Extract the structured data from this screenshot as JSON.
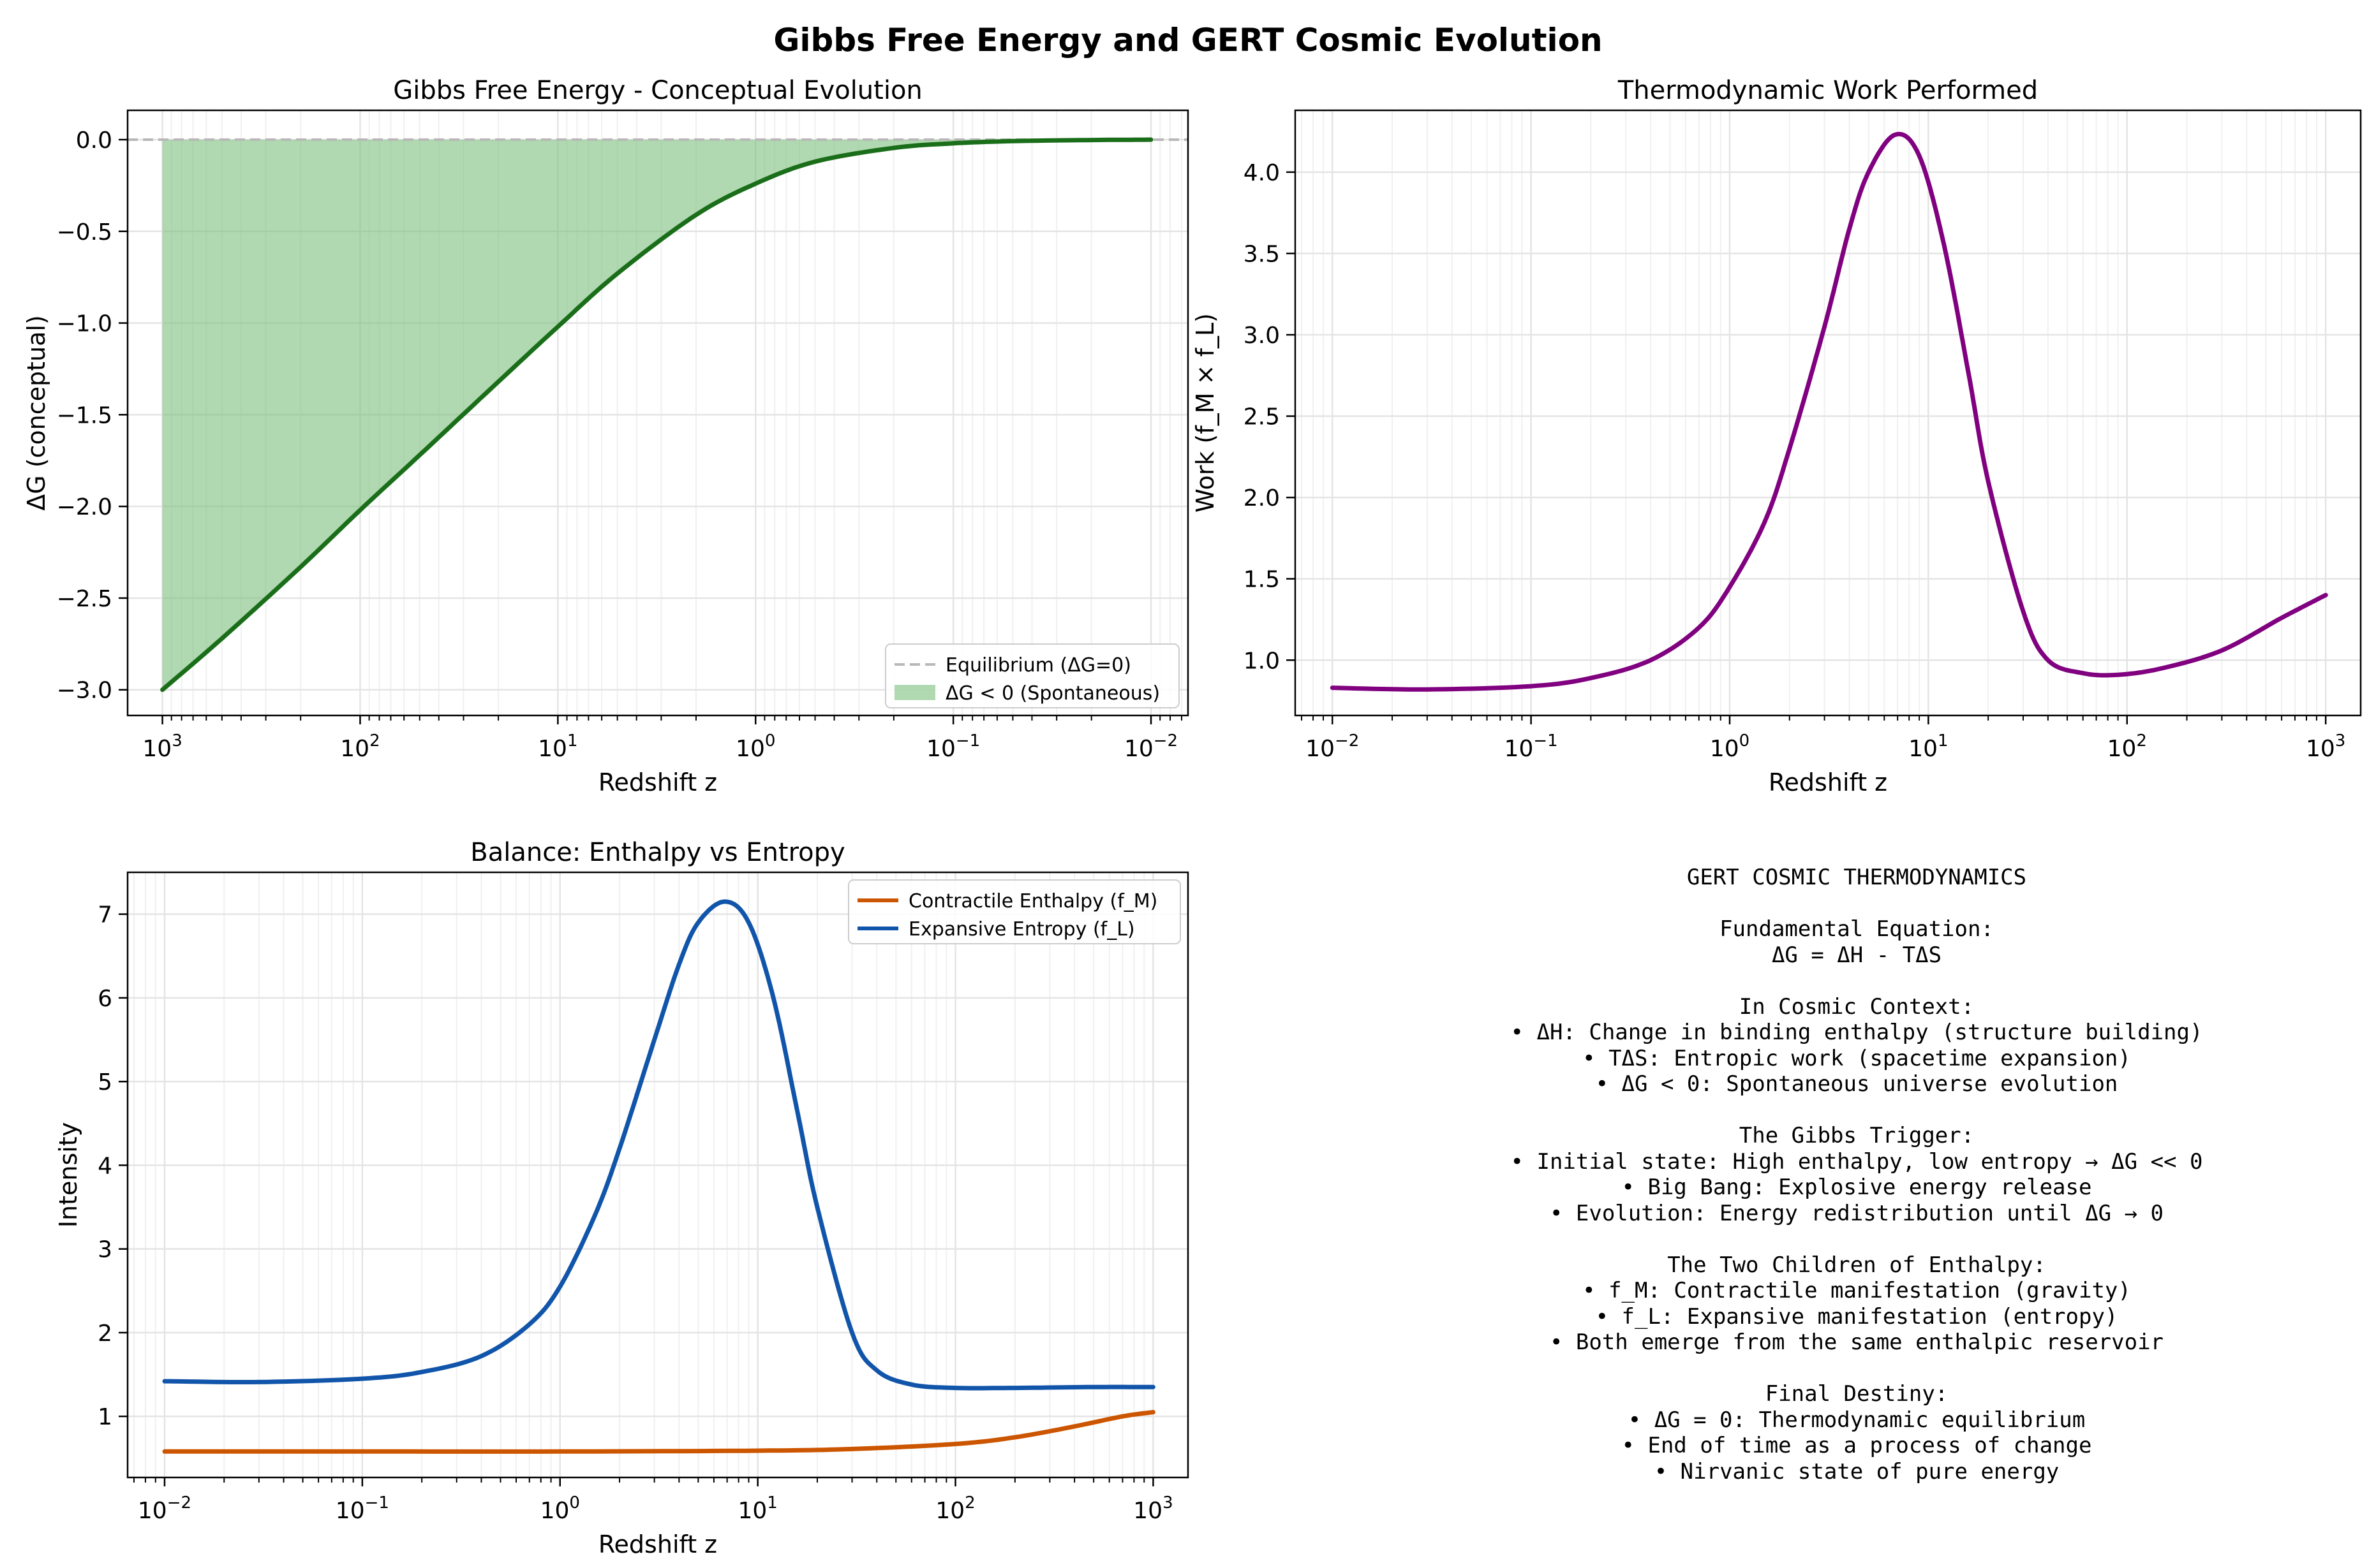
{
  "suptitle": "Gibbs Free Energy and GERT Cosmic Evolution",
  "colors": {
    "gibbs_line": "#1a6e1a",
    "gibbs_fill": "#7dc07d",
    "equilibrium": "#b8b8b8",
    "work_line": "#800080",
    "enthalpy": "#cc5500",
    "entropy": "#1155aa",
    "grid": "#e4e4e4",
    "axes": "#000000"
  },
  "chart_data": [
    {
      "id": "gibbs",
      "type": "line",
      "title": "Gibbs Free Energy - Conceptual Evolution",
      "xlabel": "Redshift z",
      "ylabel": "ΔG (conceptual)",
      "xscale": "log",
      "x_inverted": true,
      "xlim": [
        1500,
        0.0065
      ],
      "ylim": [
        -3.14,
        0.16
      ],
      "xticks": [
        1000,
        100,
        10,
        1,
        0.1,
        0.01
      ],
      "xtick_labels": [
        [
          "10",
          "3"
        ],
        [
          "10",
          "2"
        ],
        [
          "10",
          "1"
        ],
        [
          "10",
          "0"
        ],
        [
          "10",
          "−1"
        ],
        [
          "10",
          "−2"
        ]
      ],
      "yticks": [
        0.0,
        -0.5,
        -1.0,
        -1.5,
        -2.0,
        -2.5,
        -3.0
      ],
      "ytick_labels": [
        "0.0",
        "−0.5",
        "−1.0",
        "−1.5",
        "−2.0",
        "−2.5",
        "−3.0"
      ],
      "grid": true,
      "legend": "lower-right",
      "legend_entries": [
        "Equilibrium (ΔG=0)",
        "ΔG < 0 (Spontaneous)"
      ],
      "series": [
        {
          "label": "ΔG",
          "x": [
            1000,
            500,
            200,
            100,
            50,
            20,
            10,
            5,
            2,
            1,
            0.5,
            0.2,
            0.1,
            0.05,
            0.02,
            0.01
          ],
          "y": [
            -3.0,
            -2.72,
            -2.33,
            -2.02,
            -1.72,
            -1.32,
            -1.02,
            -0.73,
            -0.41,
            -0.24,
            -0.12,
            -0.045,
            -0.02,
            -0.008,
            -0.002,
            0.0
          ]
        }
      ],
      "reference_line": {
        "label": "Equilibrium (ΔG=0)",
        "y": 0.0
      }
    },
    {
      "id": "work",
      "type": "line",
      "title": "Thermodynamic Work Performed",
      "xlabel": "Redshift z",
      "ylabel": "Work (f_M × f_L)",
      "xscale": "log",
      "x_inverted": false,
      "xlim": [
        0.0065,
        1500
      ],
      "ylim": [
        0.66,
        4.38
      ],
      "xticks": [
        0.01,
        0.1,
        1,
        10,
        100,
        1000
      ],
      "xtick_labels": [
        [
          "10",
          "−2"
        ],
        [
          "10",
          "−1"
        ],
        [
          "10",
          "0"
        ],
        [
          "10",
          "1"
        ],
        [
          "10",
          "2"
        ],
        [
          "10",
          "3"
        ]
      ],
      "yticks": [
        1.0,
        1.5,
        2.0,
        2.5,
        3.0,
        3.5,
        4.0
      ],
      "ytick_labels": [
        "1.0",
        "1.5",
        "2.0",
        "2.5",
        "3.0",
        "3.5",
        "4.0"
      ],
      "grid": true,
      "series": [
        {
          "label": "Work",
          "x": [
            0.01,
            0.03,
            0.1,
            0.2,
            0.4,
            0.7,
            1,
            1.5,
            2,
            3,
            4,
            5,
            6.8,
            9,
            12,
            16,
            20,
            30,
            40,
            60,
            90,
            150,
            300,
            600,
            1000
          ],
          "y": [
            0.83,
            0.82,
            0.84,
            0.89,
            1.0,
            1.2,
            1.45,
            1.85,
            2.3,
            3.05,
            3.65,
            4.0,
            4.23,
            4.1,
            3.55,
            2.75,
            2.1,
            1.3,
            1.0,
            0.92,
            0.91,
            0.95,
            1.06,
            1.26,
            1.4
          ]
        }
      ]
    },
    {
      "id": "balance",
      "type": "line",
      "title": "Balance: Enthalpy vs Entropy",
      "xlabel": "Redshift z",
      "ylabel": "Intensity",
      "xscale": "log",
      "x_inverted": false,
      "xlim": [
        0.0065,
        1500
      ],
      "ylim": [
        0.27,
        7.5
      ],
      "xticks": [
        0.01,
        0.1,
        1,
        10,
        100,
        1000
      ],
      "xtick_labels": [
        [
          "10",
          "−2"
        ],
        [
          "10",
          "−1"
        ],
        [
          "10",
          "0"
        ],
        [
          "10",
          "1"
        ],
        [
          "10",
          "2"
        ],
        [
          "10",
          "3"
        ]
      ],
      "yticks": [
        1,
        2,
        3,
        4,
        5,
        6,
        7
      ],
      "ytick_labels": [
        "1",
        "2",
        "3",
        "4",
        "5",
        "6",
        "7"
      ],
      "grid": true,
      "legend": "upper-right",
      "legend_entries": [
        "Contractile Enthalpy (f_M)",
        "Expansive Entropy (f_L)"
      ],
      "series": [
        {
          "label": "Contractile Enthalpy (f_M)",
          "x": [
            0.01,
            0.1,
            1,
            10,
            30,
            100,
            200,
            400,
            700,
            1000
          ],
          "y": [
            0.58,
            0.58,
            0.58,
            0.59,
            0.61,
            0.67,
            0.75,
            0.88,
            1.0,
            1.05
          ]
        },
        {
          "label": "Expansive Entropy (f_L)",
          "x": [
            0.01,
            0.03,
            0.1,
            0.2,
            0.4,
            0.7,
            1,
            1.5,
            2,
            3,
            4,
            5,
            6.8,
            9,
            12,
            16,
            20,
            30,
            40,
            60,
            100,
            200,
            500,
            1000
          ],
          "y": [
            1.42,
            1.41,
            1.45,
            1.53,
            1.72,
            2.1,
            2.55,
            3.4,
            4.2,
            5.5,
            6.4,
            6.9,
            7.15,
            6.9,
            6.0,
            4.6,
            3.5,
            2.0,
            1.55,
            1.38,
            1.34,
            1.34,
            1.35,
            1.35
          ]
        }
      ]
    }
  ],
  "thermo_text": [
    "GERT COSMIC THERMODYNAMICS",
    "",
    "Fundamental Equation:",
    "ΔG = ΔH - TΔS",
    "",
    "In Cosmic Context:",
    "• ΔH: Change in binding enthalpy (structure building)",
    "• TΔS: Entropic work (spacetime expansion)",
    "• ΔG < 0: Spontaneous universe evolution",
    "",
    "The Gibbs Trigger:",
    "• Initial state: High enthalpy, low entropy → ΔG << 0",
    "• Big Bang: Explosive energy release",
    "• Evolution: Energy redistribution until ΔG → 0",
    "",
    "The Two Children of Enthalpy:",
    "• f_M: Contractile manifestation (gravity)",
    "• f_L: Expansive manifestation (entropy)",
    "• Both emerge from the same enthalpic reservoir",
    "",
    "Final Destiny:",
    "• ΔG = 0: Thermodynamic equilibrium",
    "• End of time as a process of change",
    "• Nirvanic state of pure energy"
  ]
}
